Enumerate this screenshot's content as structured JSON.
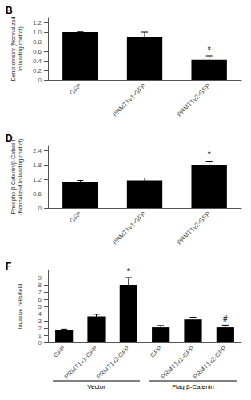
{
  "chart_data": [
    {
      "type": "bar",
      "title": "B",
      "categories": [
        "GFP",
        "PRMT1v1-GFP",
        "PRMT1v2-GFP"
      ],
      "values": [
        1.0,
        0.9,
        0.42
      ],
      "errors": [
        0.0,
        0.1,
        0.08
      ],
      "ylabel": "Densitometry (Normalized\nto loading control)",
      "ylim": [
        0,
        1.3
      ],
      "yticks": [
        0,
        0.2,
        0.4,
        0.6,
        0.8,
        {
          "value": 1.0,
          "label": "1.0"
        },
        1.2
      ],
      "color": "#000000",
      "grid": false,
      "annotations": [
        {
          "text": "*",
          "index": 2
        }
      ]
    },
    {
      "type": "bar",
      "title": "D",
      "categories": [
        "GFP",
        "PRMT1v1-GFP",
        "PRMT1v2-GFP"
      ],
      "values": [
        1.1,
        1.15,
        1.8
      ],
      "errors": [
        0.05,
        0.1,
        0.15
      ],
      "ylabel": "Phospho-β-Catenin/β-Catenin\n(Normalized to loading control)",
      "ylim": [
        0,
        2.6
      ],
      "yticks": [
        0,
        0.6,
        1.2,
        1.8,
        2.4
      ],
      "color": "#000000",
      "grid": false,
      "annotations": [
        {
          "text": "*",
          "index": 2
        }
      ]
    },
    {
      "type": "bar",
      "title": "F",
      "categories": [
        "GFP",
        "PRMT1v1-GFP",
        "PRMT1v2-GFP",
        "GFP",
        "PRMT1v1-GFP",
        "PRMT1v2-GFP"
      ],
      "values": [
        1.7,
        3.6,
        8.0,
        2.1,
        3.2,
        2.1
      ],
      "errors": [
        0.15,
        0.3,
        1.0,
        0.25,
        0.3,
        0.3
      ],
      "ylabel": "Invasive cells/field",
      "ylim": [
        0,
        10
      ],
      "yticks": [
        0,
        1,
        2,
        3,
        4,
        5,
        6,
        7,
        8,
        9
      ],
      "color": "#000000",
      "grid": false,
      "annotations": [
        {
          "text": "*",
          "index": 2
        },
        {
          "text": "#",
          "index": 5
        }
      ],
      "groups": [
        {
          "label": "Vector",
          "from": 0,
          "to": 2
        },
        {
          "label": "Flag β-Catenin",
          "from": 3,
          "to": 5
        }
      ]
    }
  ]
}
